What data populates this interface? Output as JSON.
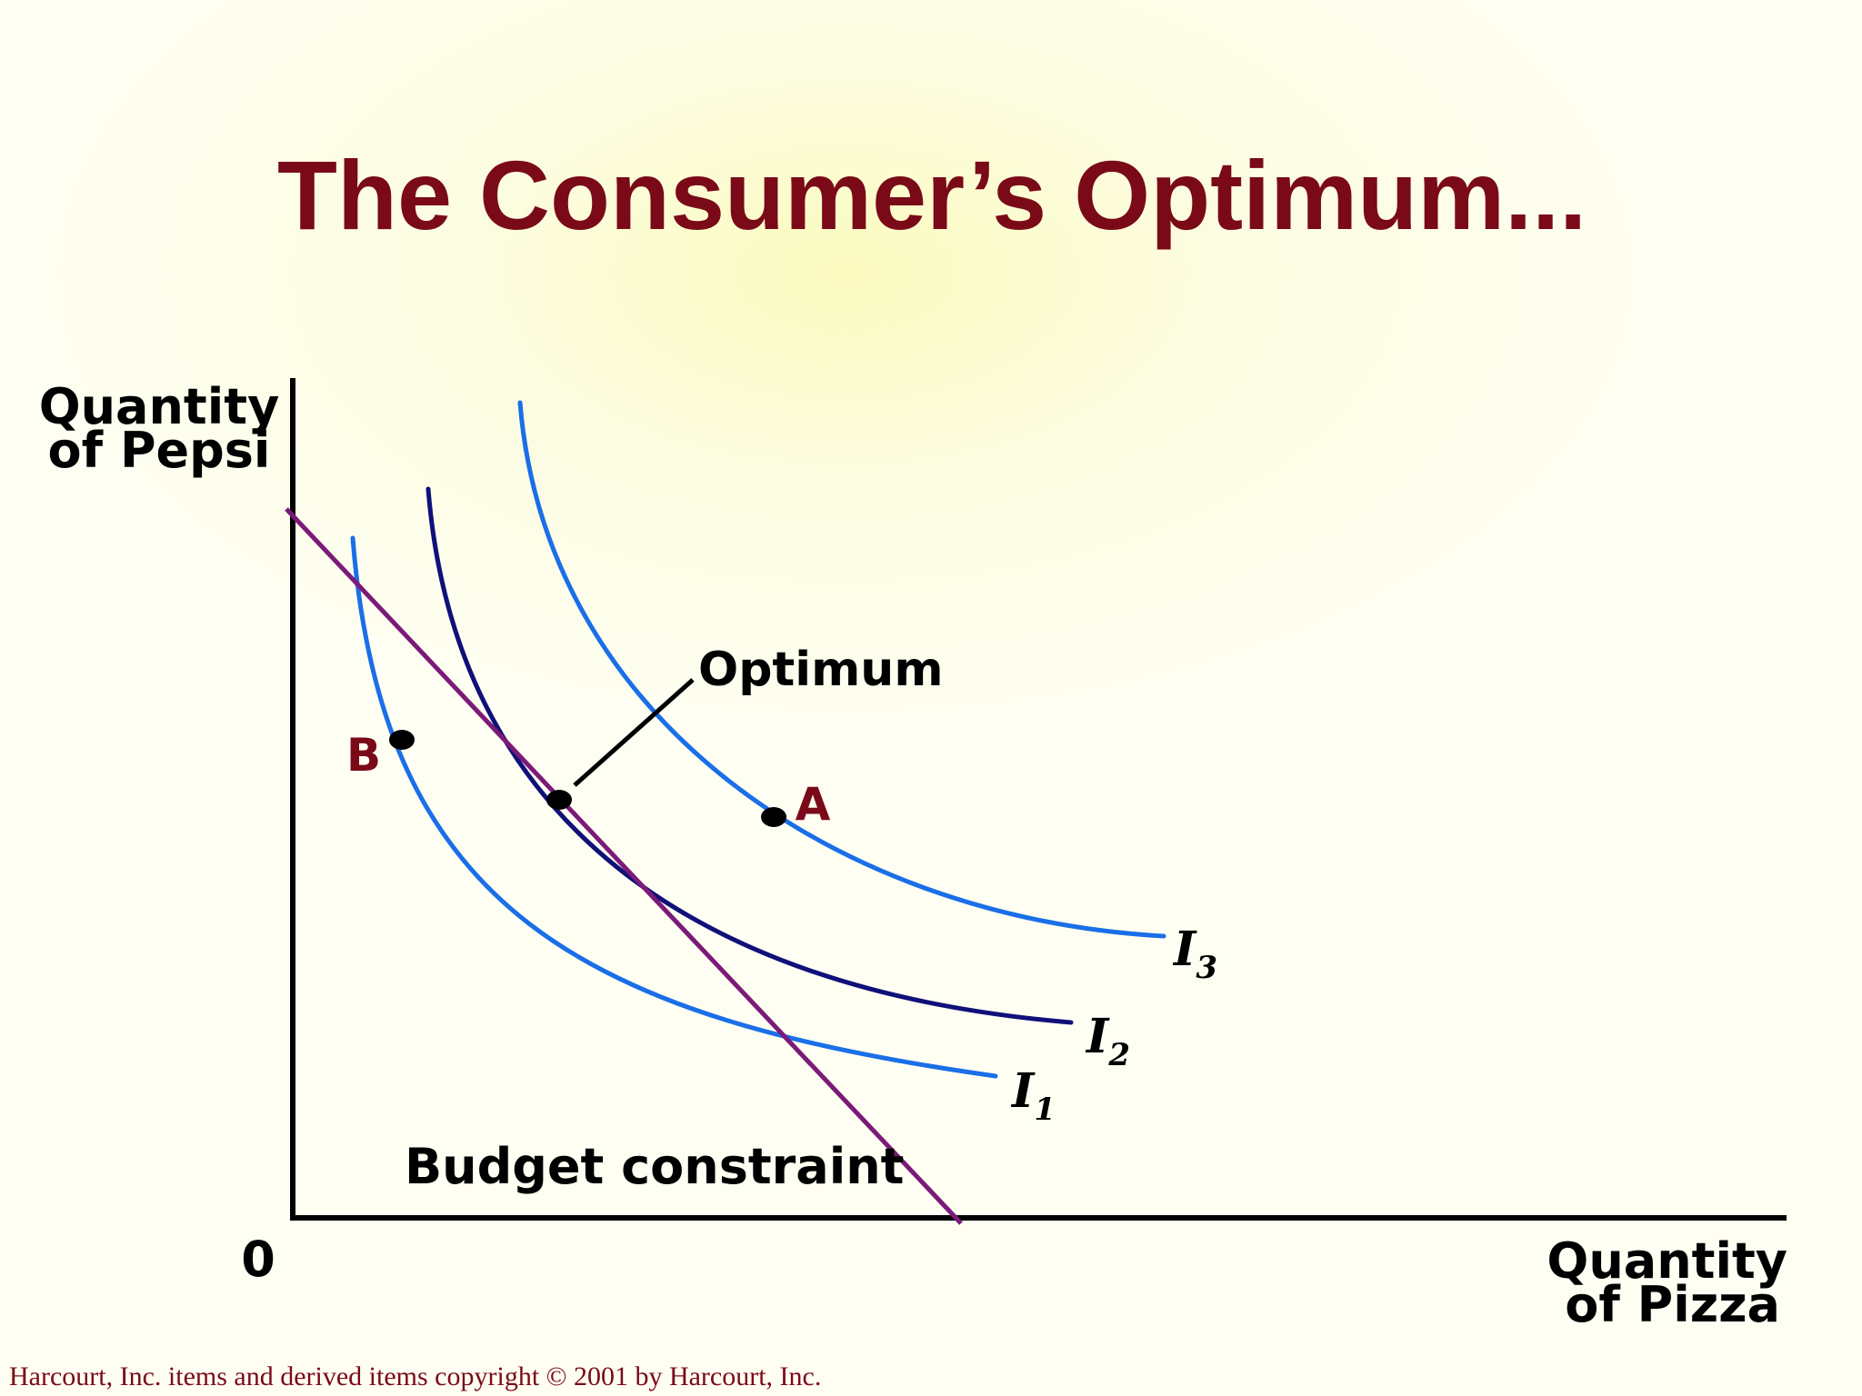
{
  "title": "The Consumer’s Optimum...",
  "axes": {
    "y_label_line1": "Quantity",
    "y_label_line2": "of Pepsi",
    "x_label_line1": "Quantity",
    "x_label_line2": "of Pizza",
    "origin": "0"
  },
  "labels": {
    "optimum": "Optimum",
    "budget_constraint": "Budget constraint",
    "point_a": "A",
    "point_b": "B"
  },
  "curves": [
    {
      "id": "I1",
      "letter": "I",
      "subscript": "1",
      "color": "#1a6fe8"
    },
    {
      "id": "I2",
      "letter": "I",
      "subscript": "2",
      "color": "#10107a"
    },
    {
      "id": "I3",
      "letter": "I",
      "subscript": "3",
      "color": "#1a6fe8"
    }
  ],
  "colors": {
    "title": "#7a0a18",
    "budget_line": "#7b1a78",
    "indifference_light": "#1a6fe8",
    "indifference_dark": "#10107a",
    "point_labels": "#7a0a18"
  },
  "footer": "Harcourt, Inc. items and derived items copyright © 2001 by Harcourt, Inc."
}
